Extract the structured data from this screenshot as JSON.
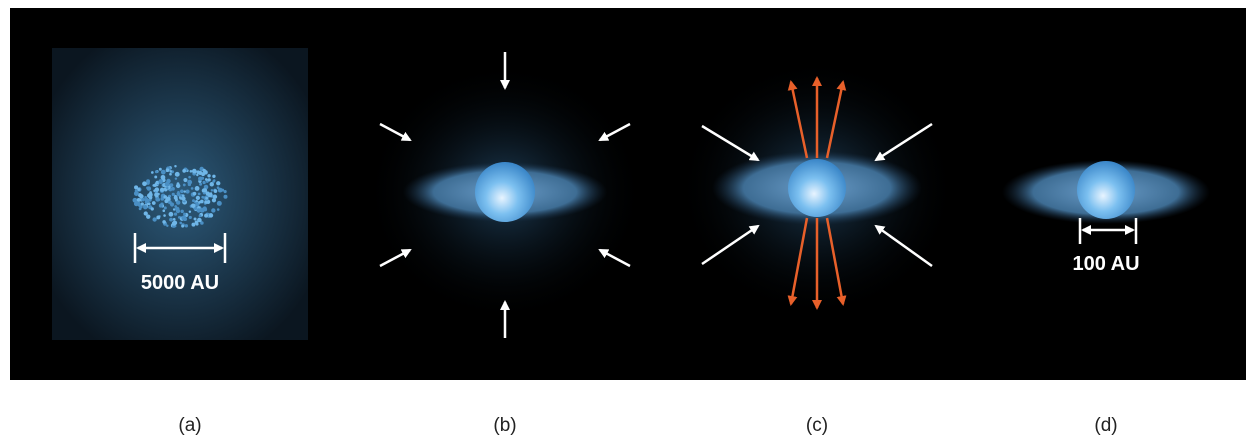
{
  "panels": [
    {
      "label": "(a)",
      "scale": "5000 AU"
    },
    {
      "label": "(b)"
    },
    {
      "label": "(c)"
    },
    {
      "label": "(d)",
      "scale": "100 AU"
    }
  ]
}
